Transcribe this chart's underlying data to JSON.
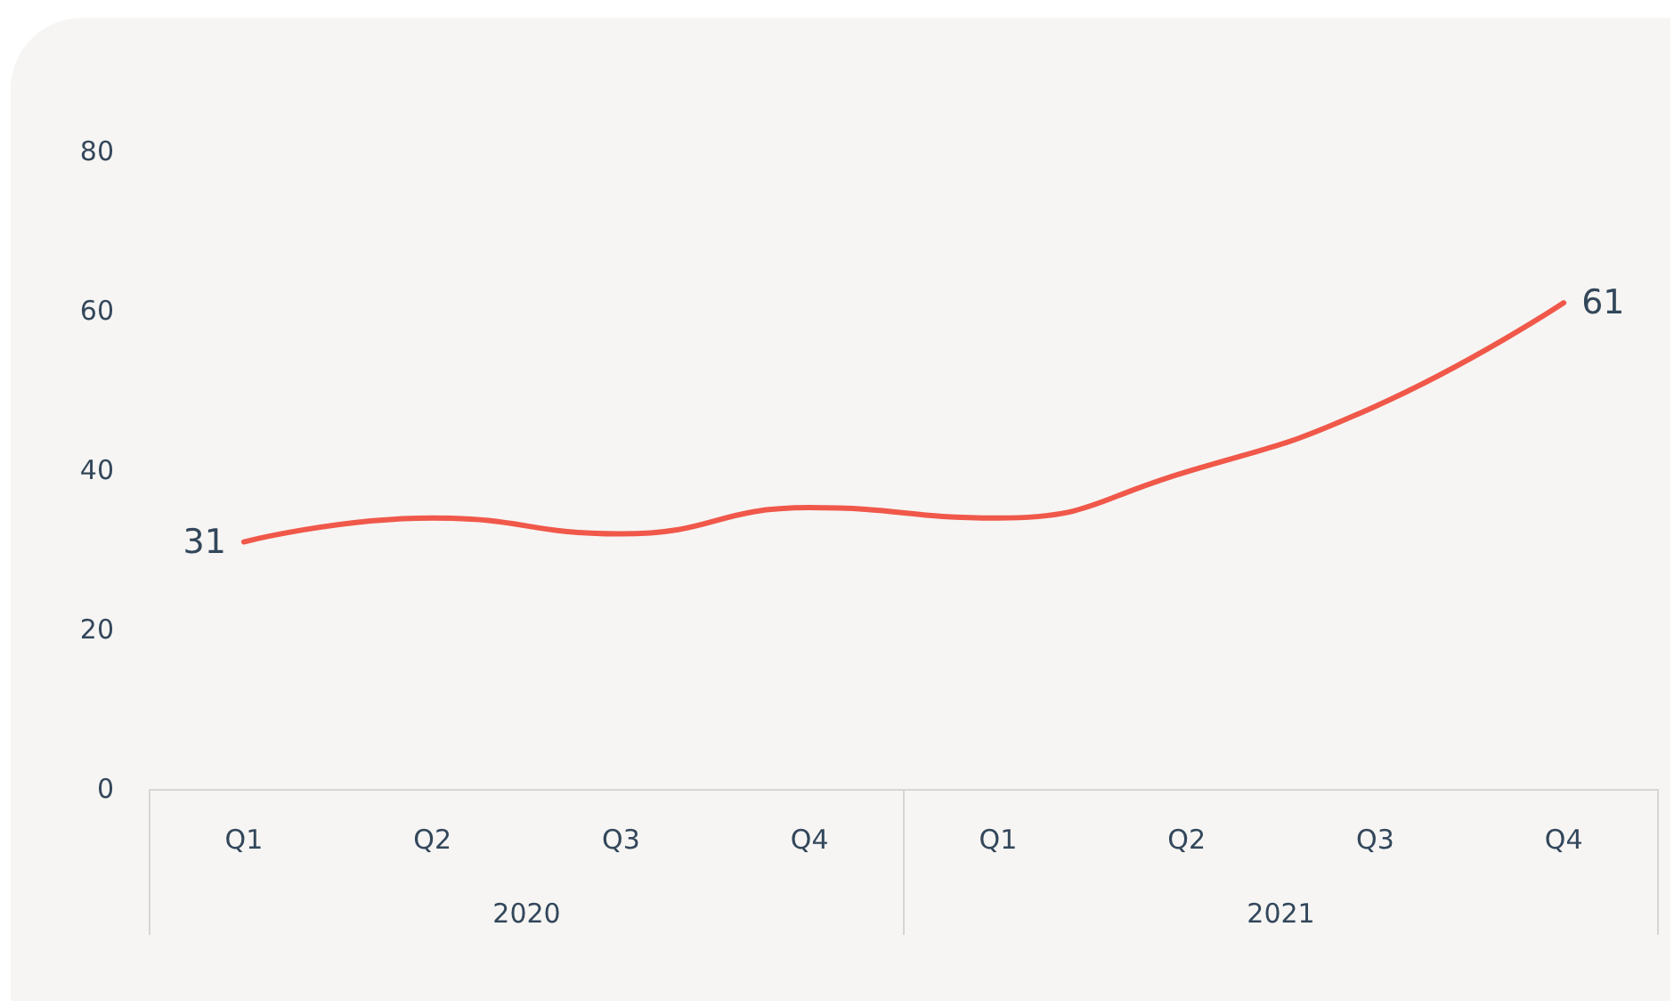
{
  "chart_data": {
    "type": "line",
    "categories": [
      "Q1",
      "Q2",
      "Q3",
      "Q4",
      "Q1",
      "Q2",
      "Q3",
      "Q4"
    ],
    "series": [
      {
        "color": "#f0584a",
        "values": [
          31,
          34,
          32,
          35.3,
          34,
          39.8,
          48,
          61
        ],
        "value_labels": [
          "31",
          null,
          null,
          null,
          null,
          null,
          null,
          "61"
        ]
      }
    ],
    "ylim": [
      0,
      80
    ],
    "yticks": [
      0,
      20,
      40,
      60,
      80
    ],
    "grid": false,
    "marker": "none",
    "line_style": "solid",
    "annotations": [
      "2020",
      "2021"
    ]
  }
}
